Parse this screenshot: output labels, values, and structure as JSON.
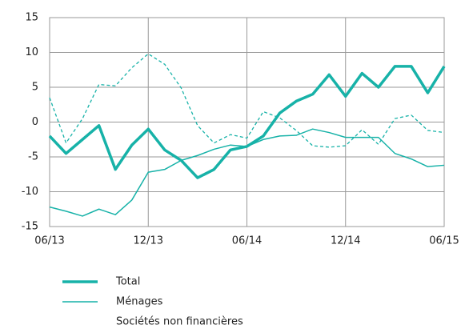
{
  "chart_data": {
    "type": "line",
    "categories": [
      "06/13",
      null,
      null,
      null,
      null,
      null,
      "12/13",
      null,
      null,
      null,
      null,
      null,
      "06/14",
      null,
      null,
      null,
      null,
      null,
      "12/14",
      null,
      null,
      null,
      null,
      null,
      "06/15"
    ],
    "series": [
      {
        "name": "Total",
        "color": "#17b2a8",
        "width": 3.5,
        "dash": false,
        "values": [
          -2,
          -4.5,
          -2.5,
          -0.5,
          -6.8,
          -3.3,
          -1,
          -4,
          -5.5,
          -8,
          -6.8,
          -4,
          -3.5,
          -2,
          1.3,
          3,
          4,
          6.8,
          3.7,
          7,
          5,
          8,
          8,
          4.2,
          8
        ]
      },
      {
        "name": "Ménages",
        "color": "#17b2a8",
        "width": 1.5,
        "dash": false,
        "values": [
          -12.2,
          -12.8,
          -13.5,
          -12.5,
          -13.3,
          -11.2,
          -7.2,
          -6.8,
          -5.5,
          -4.8,
          -3.9,
          -3.3,
          -3.5,
          -2.5,
          -2,
          -1.9,
          -1,
          -1.5,
          -2.2,
          -2.2,
          -2.2,
          -4.5,
          -5.3,
          -6.4,
          -6.2
        ]
      },
      {
        "name": "Sociétés non financières",
        "color": "#17b2a8",
        "width": 1.3,
        "dash": true,
        "values": [
          3.5,
          -3,
          0.5,
          5.4,
          5.2,
          7.8,
          9.8,
          8.3,
          4.9,
          -0.5,
          -3,
          -1.8,
          -2.3,
          1.5,
          0.6,
          -1.2,
          -3.4,
          -3.6,
          -3.4,
          -1.1,
          -3.2,
          0.5,
          1,
          -1.2,
          -1.5
        ]
      }
    ],
    "ylim": [
      -15,
      15
    ],
    "yticks": [
      -15,
      -10,
      -5,
      0,
      5,
      10,
      15
    ],
    "grid": true
  }
}
